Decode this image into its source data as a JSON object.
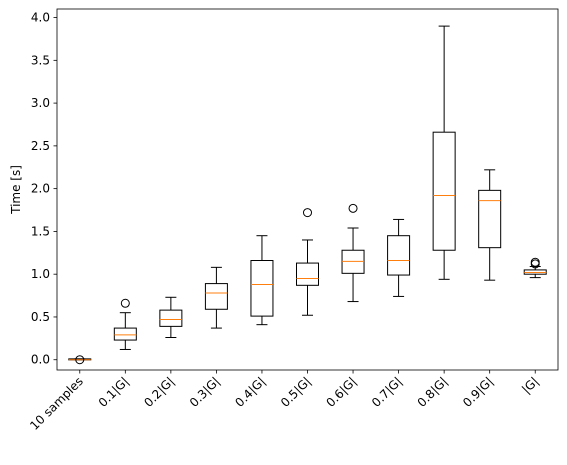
{
  "chart_data": {
    "type": "box",
    "title": "",
    "xlabel": "",
    "ylabel": "Time [s]",
    "ylim": [
      -0.12,
      4.1
    ],
    "yticks": [
      "0.0",
      "0.5",
      "1.0",
      "1.5",
      "2.0",
      "2.5",
      "3.0",
      "3.5",
      "4.0"
    ],
    "ytick_values": [
      0.0,
      0.5,
      1.0,
      1.5,
      2.0,
      2.5,
      3.0,
      3.5,
      4.0
    ],
    "grid": false,
    "box_color": "#000000",
    "median_color": "#ff7f0e",
    "categories": [
      "10 samples",
      "0.1|G|",
      "0.2|G|",
      "0.3|G|",
      "0.4|G|",
      "0.5|G|",
      "0.6|G|",
      "0.7|G|",
      "0.8|G|",
      "0.9|G|",
      "|G|"
    ],
    "boxes": [
      {
        "whisker_low": 0.0,
        "q1": 0.0,
        "median": 0.0,
        "q3": 0.01,
        "whisker_high": 0.01,
        "fliers": [
          0.0
        ]
      },
      {
        "whisker_low": 0.12,
        "q1": 0.23,
        "median": 0.29,
        "q3": 0.37,
        "whisker_high": 0.55,
        "fliers": [
          0.66
        ]
      },
      {
        "whisker_low": 0.26,
        "q1": 0.39,
        "median": 0.47,
        "q3": 0.58,
        "whisker_high": 0.73,
        "fliers": []
      },
      {
        "whisker_low": 0.37,
        "q1": 0.59,
        "median": 0.78,
        "q3": 0.89,
        "whisker_high": 1.08,
        "fliers": []
      },
      {
        "whisker_low": 0.41,
        "q1": 0.51,
        "median": 0.88,
        "q3": 1.16,
        "whisker_high": 1.45,
        "fliers": []
      },
      {
        "whisker_low": 0.52,
        "q1": 0.87,
        "median": 0.95,
        "q3": 1.13,
        "whisker_high": 1.4,
        "fliers": [
          1.72
        ]
      },
      {
        "whisker_low": 0.68,
        "q1": 1.01,
        "median": 1.15,
        "q3": 1.28,
        "whisker_high": 1.54,
        "fliers": [
          1.77
        ]
      },
      {
        "whisker_low": 0.74,
        "q1": 0.99,
        "median": 1.16,
        "q3": 1.45,
        "whisker_high": 1.64,
        "fliers": []
      },
      {
        "whisker_low": 0.94,
        "q1": 1.28,
        "median": 1.92,
        "q3": 2.66,
        "whisker_high": 3.9,
        "fliers": []
      },
      {
        "whisker_low": 0.93,
        "q1": 1.31,
        "median": 1.86,
        "q3": 1.98,
        "whisker_high": 2.22,
        "fliers": []
      },
      {
        "whisker_low": 0.96,
        "q1": 1.0,
        "median": 1.02,
        "q3": 1.05,
        "whisker_high": 1.09,
        "fliers": [
          1.12,
          1.14
        ]
      }
    ]
  }
}
